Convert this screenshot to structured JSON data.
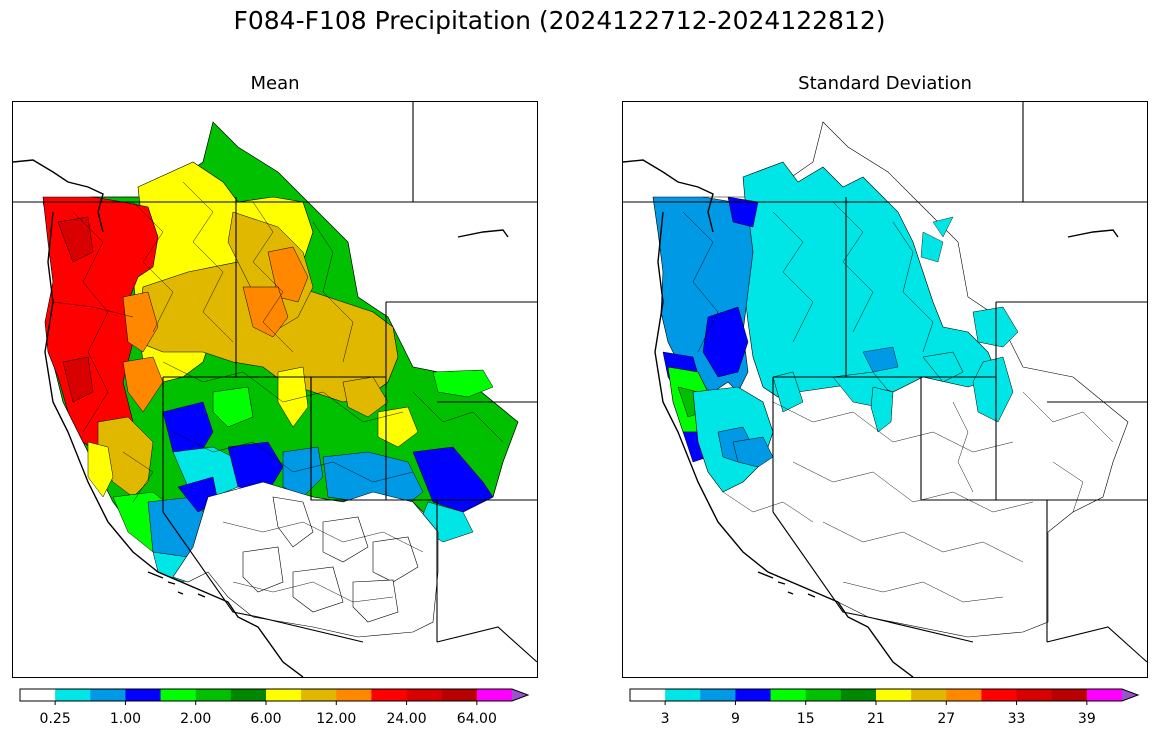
{
  "figure": {
    "title": "F084-F108 Precipitation (2024122712-2024122812)"
  },
  "panels": {
    "mean": {
      "title": "Mean",
      "colorbar": {
        "colors": [
          "#ffffff",
          "#00e5e5",
          "#0099e6",
          "#0000ff",
          "#00ff00",
          "#00c000",
          "#008800",
          "#ffff00",
          "#e0b800",
          "#ff8800",
          "#ff0000",
          "#d80000",
          "#b80000",
          "#ff00ff",
          "#9955cc"
        ],
        "tick_labels": [
          "0.25",
          "1.00",
          "2.00",
          "6.00",
          "12.00",
          "24.00",
          "64.00"
        ],
        "extend": "max"
      }
    },
    "stdev": {
      "title": "Standard Deviation",
      "colorbar": {
        "colors": [
          "#ffffff",
          "#00e5e5",
          "#0099e6",
          "#0000ff",
          "#00ff00",
          "#00c000",
          "#008800",
          "#ffff00",
          "#e0b800",
          "#ff8800",
          "#ff0000",
          "#d80000",
          "#b80000",
          "#ff00ff",
          "#9955cc"
        ],
        "tick_labels": [
          "3",
          "9",
          "15",
          "21",
          "27",
          "33",
          "39"
        ],
        "extend": "max"
      }
    }
  }
}
